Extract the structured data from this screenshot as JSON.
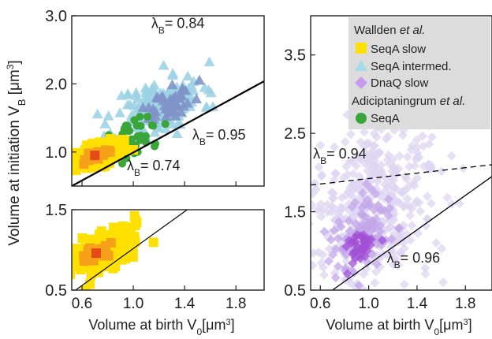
{
  "chart_data": [
    {
      "id": "top-left",
      "type": "scatter",
      "xlim": [
        0.52,
        2.02
      ],
      "ylim": [
        0.5,
        3.0
      ],
      "yticks": [
        1.0,
        2.0,
        3.0
      ],
      "ytick_labels": [
        "1.0",
        "2.0",
        "3.0"
      ],
      "xticks": [
        0.6,
        1.0,
        1.4,
        1.8
      ],
      "x_tick_labels_shown": false,
      "ylabel": "Volume at initiation V",
      "ylabel_sub": "B",
      "ylabel_unit": " [μm",
      "ylabel_unit_sup": "3",
      "ylabel_unit_close": "]",
      "series": [
        {
          "name": "SeqA intermed.",
          "marker": "triangle",
          "color": "#9dd3e6",
          "center": [
            1.2,
            1.65
          ],
          "spread": [
            0.17,
            0.22
          ],
          "n": 170,
          "seed": 11
        },
        {
          "name": "SeqA intermed. dense core",
          "marker": "triangle",
          "color": "#7f93c8",
          "center": [
            1.28,
            1.68
          ],
          "spread": [
            0.09,
            0.11
          ],
          "n": 45,
          "seed": 17
        },
        {
          "name": "SeqA",
          "marker": "circle",
          "color": "#3aa63a",
          "center": [
            1.02,
            1.2
          ],
          "spread": [
            0.1,
            0.12
          ],
          "n": 45,
          "seed": 23
        },
        {
          "name": "SeqA slow",
          "marker": "square",
          "color": "#ffe000",
          "center": [
            0.7,
            0.95
          ],
          "spread": [
            0.12,
            0.08
          ],
          "n": 200,
          "seed": 5
        },
        {
          "name": "SeqA slow dense core",
          "marker": "square",
          "color": "#f7a01a",
          "center": [
            0.72,
            0.95
          ],
          "spread": [
            0.05,
            0.04
          ],
          "n": 30,
          "seed": 9
        }
      ],
      "hotspot": {
        "x": 0.7,
        "y": 0.95,
        "color": "#e64a19"
      },
      "line": {
        "style": "solid",
        "width": 2.2,
        "points": [
          [
            0.52,
            0.5
          ],
          [
            2.02,
            2.04
          ]
        ]
      },
      "annotations": [
        {
          "text_main": "λ",
          "text_sub": "B",
          "text_value": "= 0.84",
          "x": 1.14,
          "y": 2.82
        },
        {
          "text_main": "λ",
          "text_sub": "B",
          "text_value": "= 0.95",
          "x": 1.46,
          "y": 1.18
        },
        {
          "text_main": "λ",
          "text_sub": "B",
          "text_value": "= 0.74",
          "x": 0.95,
          "y": 0.73
        }
      ]
    },
    {
      "id": "bottom-left",
      "type": "scatter",
      "xlim": [
        0.52,
        2.02
      ],
      "ylim": [
        0.5,
        1.5
      ],
      "yticks": [
        0.5,
        1.5
      ],
      "ytick_labels": [
        "0.5",
        "1.5"
      ],
      "xticks": [
        0.6,
        1.0,
        1.4,
        1.8
      ],
      "xtick_labels": [
        "0.6",
        "1.0",
        "1.4",
        "1.8"
      ],
      "xlabel": "Volume at birth V",
      "xlabel_sub": "0",
      "xlabel_unit": "[μm",
      "xlabel_unit_sup": "3",
      "xlabel_unit_close": "]",
      "series": [
        {
          "name": "SeqA slow",
          "marker": "square",
          "color": "#ffe000",
          "center": [
            0.8,
            0.98
          ],
          "spread": [
            0.13,
            0.13
          ],
          "n": 170,
          "seed": 31
        },
        {
          "name": "SeqA slow dense core",
          "marker": "square",
          "color": "#f7a01a",
          "center": [
            0.72,
            0.96
          ],
          "spread": [
            0.05,
            0.05
          ],
          "n": 25,
          "seed": 37
        }
      ],
      "hotspot": {
        "x": 0.71,
        "y": 0.96,
        "color": "#e64a19"
      },
      "line": {
        "style": "solid",
        "width": 1.2,
        "points": [
          [
            0.55,
            0.5
          ],
          [
            1.42,
            1.5
          ]
        ]
      }
    },
    {
      "id": "right",
      "type": "scatter",
      "xlim": [
        0.52,
        2.02
      ],
      "ylim": [
        0.5,
        4.0
      ],
      "yticks": [
        0.5,
        1.5,
        2.5,
        3.5
      ],
      "ytick_labels": [
        "0.5",
        "1.5",
        "2.5",
        "3.5"
      ],
      "xticks": [
        0.6,
        1.0,
        1.4,
        1.8
      ],
      "xtick_labels": [
        "0.6",
        "1.0",
        "1.4",
        "1.8"
      ],
      "xlabel": "Volume at birth V",
      "xlabel_sub": "0",
      "xlabel_unit": "[μm",
      "xlabel_unit_sup": "3",
      "xlabel_unit_close": "]",
      "series": [
        {
          "name": "DnaQ slow",
          "marker": "diamond",
          "color": "#ddd6f2",
          "center": [
            1.05,
            1.65
          ],
          "spread": [
            0.28,
            0.6
          ],
          "n": 420,
          "seed": 41
        },
        {
          "name": "DnaQ slow mid",
          "marker": "diamond",
          "color": "#c3a7ea",
          "center": [
            0.95,
            1.25
          ],
          "spread": [
            0.14,
            0.25
          ],
          "n": 110,
          "seed": 43
        },
        {
          "name": "DnaQ slow dense core",
          "marker": "diamond",
          "color": "#a24fd6",
          "center": [
            0.92,
            1.05
          ],
          "spread": [
            0.06,
            0.09
          ],
          "n": 35,
          "seed": 47
        }
      ],
      "lines": [
        {
          "style": "dashed",
          "width": 1.3,
          "points": [
            [
              0.52,
              1.84
            ],
            [
              2.02,
              2.1
            ]
          ]
        },
        {
          "style": "solid",
          "width": 1.3,
          "points": [
            [
              0.7,
              0.5
            ],
            [
              2.02,
              1.95
            ]
          ]
        }
      ],
      "annotations": [
        {
          "text_main": "λ",
          "text_sub": "B",
          "text_value": "= 0.94",
          "x": 0.54,
          "y": 2.18
        },
        {
          "text_main": "λ",
          "text_sub": "B",
          "text_value": "= 0.96",
          "x": 1.15,
          "y": 0.85
        }
      ]
    }
  ],
  "legend": {
    "placement": "top-right",
    "group1": "Wallden et al.",
    "group1_plain": "Wallden ",
    "group1_italic": "et al.",
    "items1": [
      {
        "label": "SeqA slow",
        "marker": "square",
        "color": "#ffe000"
      },
      {
        "label": "SeqA intermed.",
        "marker": "triangle",
        "color": "#a6dbe8"
      },
      {
        "label": "DnaQ slow",
        "marker": "diamond",
        "color": "#c79cf0"
      }
    ],
    "group2": "Adiciptaningrum et al.",
    "group2_plain": "Adiciptaningrum ",
    "group2_italic": "et al.",
    "items2": [
      {
        "label": "SeqA",
        "marker": "circle",
        "color": "#3aa63a"
      }
    ]
  }
}
